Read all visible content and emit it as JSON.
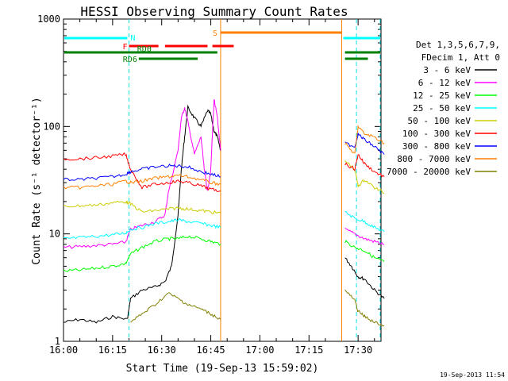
{
  "chart_data": {
    "type": "line",
    "title": "HESSI Observing Summary Count Rates",
    "xlabel": "Start Time (19-Sep-13 15:59:02)",
    "ylabel": "Count Rate (s⁻¹ detector⁻¹)",
    "yscale": "log",
    "ylim": [
      1,
      1000
    ],
    "xlim_minutes_after_1600": [
      0,
      97
    ],
    "x_tick_labels": [
      "16:00",
      "16:15",
      "16:30",
      "16:45",
      "17:00",
      "17:15",
      "17:30"
    ],
    "x_tick_minutes": [
      0,
      15,
      30,
      45,
      60,
      75,
      90
    ],
    "y_tick_labels": [
      "1",
      "10",
      "100",
      "1000"
    ],
    "y_tick_values": [
      1,
      10,
      100,
      1000
    ],
    "legend_header": [
      "Det 1,3,5,6,7,9,",
      "FDecim 1, Att 0"
    ],
    "legend_position": "right",
    "timestamp": "19-Sep-2013 11:54",
    "time_markers": [
      {
        "label": "N",
        "color": "#00e5e5",
        "minute": 20
      },
      {
        "label": "",
        "color": "#00e5e5",
        "minute": 89.5
      },
      {
        "label": "",
        "color": "#00e5e5",
        "minute": 100
      }
    ],
    "flags": [
      {
        "label": "N",
        "color": "#00ffff",
        "level": 1,
        "segments": [
          [
            0,
            19.5
          ],
          [
            85.5,
            100
          ]
        ]
      },
      {
        "label": "S",
        "color": "#ff8000",
        "level": 2,
        "segments": [
          [
            48,
            85
          ]
        ]
      },
      {
        "label": "F",
        "color": "#ff0000",
        "level": 3,
        "segments": [
          [
            20,
            29
          ],
          [
            31,
            44
          ],
          [
            45.5,
            52
          ]
        ]
      },
      {
        "label": "RD0",
        "color": "#008000",
        "level": 4,
        "segments": [
          [
            0,
            47
          ],
          [
            86,
            100
          ]
        ]
      },
      {
        "label": "RD6",
        "color": "#008000",
        "level": 5,
        "segments": [
          [
            23,
            41
          ],
          [
            86,
            93
          ]
        ]
      }
    ],
    "series": [
      {
        "name": "3 - 6 keV",
        "color": "#000000",
        "segments": [
          [
            [
              0,
              1.5
            ],
            [
              5,
              1.6
            ],
            [
              10,
              1.5
            ],
            [
              15,
              1.7
            ],
            [
              19.5,
              1.6
            ],
            [
              20.5,
              2.5
            ],
            [
              24,
              3.0
            ],
            [
              28,
              3.2
            ],
            [
              31,
              3.6
            ],
            [
              33,
              5
            ],
            [
              35,
              15
            ],
            [
              36,
              40
            ],
            [
              37,
              80
            ],
            [
              38,
              150
            ],
            [
              40,
              120
            ],
            [
              42,
              100
            ],
            [
              44,
              140
            ],
            [
              45,
              130
            ],
            [
              46,
              90
            ],
            [
              47,
              80
            ],
            [
              48,
              60
            ]
          ],
          [
            [
              86,
              6
            ],
            [
              88,
              5
            ],
            [
              90,
              4
            ],
            [
              92,
              3.8
            ],
            [
              95,
              3
            ],
            [
              98,
              2.5
            ]
          ]
        ]
      },
      {
        "name": "6 - 12 keV",
        "color": "#ff00ff",
        "segments": [
          [
            [
              0,
              7.5
            ],
            [
              5,
              7.6
            ],
            [
              10,
              7.8
            ],
            [
              15,
              8
            ],
            [
              19,
              8.4
            ],
            [
              20.5,
              11
            ],
            [
              24,
              12
            ],
            [
              28,
              13
            ],
            [
              31,
              15
            ],
            [
              32,
              24
            ],
            [
              35,
              60
            ],
            [
              36,
              120
            ],
            [
              37,
              150
            ],
            [
              38,
              110
            ],
            [
              40,
              55
            ],
            [
              42,
              80
            ],
            [
              43,
              40
            ],
            [
              44,
              25
            ],
            [
              45,
              40
            ],
            [
              46,
              180
            ],
            [
              47,
              120
            ],
            [
              48,
              60
            ]
          ],
          [
            [
              86,
              11
            ],
            [
              89,
              10
            ],
            [
              92,
              9
            ],
            [
              95,
              8.5
            ],
            [
              98,
              8
            ]
          ]
        ]
      },
      {
        "name": "12 - 25 keV",
        "color": "#00ff00",
        "segments": [
          [
            [
              0,
              4.5
            ],
            [
              5,
              4.6
            ],
            [
              10,
              4.8
            ],
            [
              15,
              5
            ],
            [
              19,
              5.3
            ],
            [
              20.5,
              6.5
            ],
            [
              24,
              7.5
            ],
            [
              28,
              8.5
            ],
            [
              32,
              9
            ],
            [
              35,
              9
            ],
            [
              38,
              9.5
            ],
            [
              42,
              9
            ],
            [
              45,
              8.5
            ],
            [
              48,
              8
            ]
          ],
          [
            [
              86,
              8.5
            ],
            [
              89,
              7.5
            ],
            [
              92,
              7
            ],
            [
              95,
              6
            ],
            [
              98,
              5.5
            ]
          ]
        ]
      },
      {
        "name": "25 - 50 keV",
        "color": "#00ffff",
        "segments": [
          [
            [
              0,
              9
            ],
            [
              5,
              9.2
            ],
            [
              10,
              9.5
            ],
            [
              15,
              9.8
            ],
            [
              19,
              10.2
            ],
            [
              20.5,
              11
            ],
            [
              24,
              11.5
            ],
            [
              28,
              12.5
            ],
            [
              32,
              13
            ],
            [
              35,
              13.5
            ],
            [
              38,
              13
            ],
            [
              42,
              12.5
            ],
            [
              45,
              12
            ],
            [
              48,
              11.5
            ]
          ],
          [
            [
              86,
              16
            ],
            [
              89,
              14
            ],
            [
              92,
              13
            ],
            [
              95,
              11.5
            ],
            [
              98,
              10.5
            ]
          ]
        ]
      },
      {
        "name": "50 - 100 keV",
        "color": "#cccc00",
        "segments": [
          [
            [
              0,
              18
            ],
            [
              5,
              18.3
            ],
            [
              10,
              18.6
            ],
            [
              15,
              19.5
            ],
            [
              19,
              20
            ],
            [
              20.5,
              19
            ],
            [
              24,
              16
            ],
            [
              28,
              16.5
            ],
            [
              32,
              17
            ],
            [
              35,
              17.5
            ],
            [
              38,
              17
            ],
            [
              42,
              16.5
            ],
            [
              45,
              16
            ],
            [
              48,
              15.5
            ]
          ],
          [
            [
              86,
              48
            ],
            [
              89,
              40
            ],
            [
              90,
              28
            ],
            [
              92,
              32
            ],
            [
              95,
              27
            ],
            [
              98,
              24
            ]
          ]
        ]
      },
      {
        "name": "100 - 300 keV",
        "color": "#ff0000",
        "segments": [
          [
            [
              0,
              50
            ],
            [
              5,
              50
            ],
            [
              10,
              51
            ],
            [
              15,
              53
            ],
            [
              19,
              55
            ],
            [
              20.5,
              40
            ],
            [
              24,
              27
            ],
            [
              28,
              29
            ],
            [
              32,
              30
            ],
            [
              35,
              31
            ],
            [
              38,
              30
            ],
            [
              42,
              28
            ],
            [
              45,
              26
            ],
            [
              48,
              25
            ]
          ],
          [
            [
              86,
              45
            ],
            [
              89,
              40
            ],
            [
              90,
              55
            ],
            [
              92,
              45
            ],
            [
              95,
              38
            ],
            [
              98,
              34
            ]
          ]
        ]
      },
      {
        "name": "300 - 800 keV",
        "color": "#0000ff",
        "segments": [
          [
            [
              0,
              32
            ],
            [
              5,
              32
            ],
            [
              10,
              33
            ],
            [
              15,
              34
            ],
            [
              19,
              36
            ],
            [
              20.5,
              38
            ],
            [
              24,
              40
            ],
            [
              28,
              42
            ],
            [
              32,
              43
            ],
            [
              35,
              43
            ],
            [
              38,
              42
            ],
            [
              42,
              38
            ],
            [
              45,
              36
            ],
            [
              48,
              34
            ]
          ],
          [
            [
              86,
              70
            ],
            [
              89,
              65
            ],
            [
              90,
              85
            ],
            [
              92,
              75
            ],
            [
              95,
              65
            ],
            [
              98,
              55
            ]
          ]
        ]
      },
      {
        "name": "800 - 7000 keV",
        "color": "#ff8000",
        "segments": [
          [
            [
              0,
              27
            ],
            [
              5,
              27
            ],
            [
              10,
              28
            ],
            [
              15,
              29
            ],
            [
              19,
              31
            ],
            [
              20.5,
              30
            ],
            [
              24,
              31
            ],
            [
              28,
              33
            ],
            [
              32,
              34
            ],
            [
              35,
              35
            ],
            [
              38,
              34
            ],
            [
              42,
              32
            ],
            [
              45,
              30
            ],
            [
              48,
              29
            ]
          ],
          [
            [
              86,
              70
            ],
            [
              89,
              55
            ],
            [
              90,
              100
            ],
            [
              92,
              85
            ],
            [
              95,
              80
            ],
            [
              98,
              70
            ]
          ]
        ]
      },
      {
        "name": "7000 - 20000 keV",
        "color": "#808000",
        "segments": [
          [
            [
              20.5,
              1.5
            ],
            [
              24,
              1.8
            ],
            [
              28,
              2.2
            ],
            [
              32,
              2.8
            ],
            [
              35,
              2.5
            ],
            [
              38,
              2.2
            ],
            [
              42,
              2.0
            ],
            [
              45,
              1.8
            ],
            [
              48,
              1.6
            ]
          ],
          [
            [
              86,
              3
            ],
            [
              89,
              2.4
            ],
            [
              90,
              1.9
            ],
            [
              92,
              1.7
            ],
            [
              95,
              1.5
            ],
            [
              98,
              1.4
            ]
          ]
        ]
      }
    ]
  }
}
